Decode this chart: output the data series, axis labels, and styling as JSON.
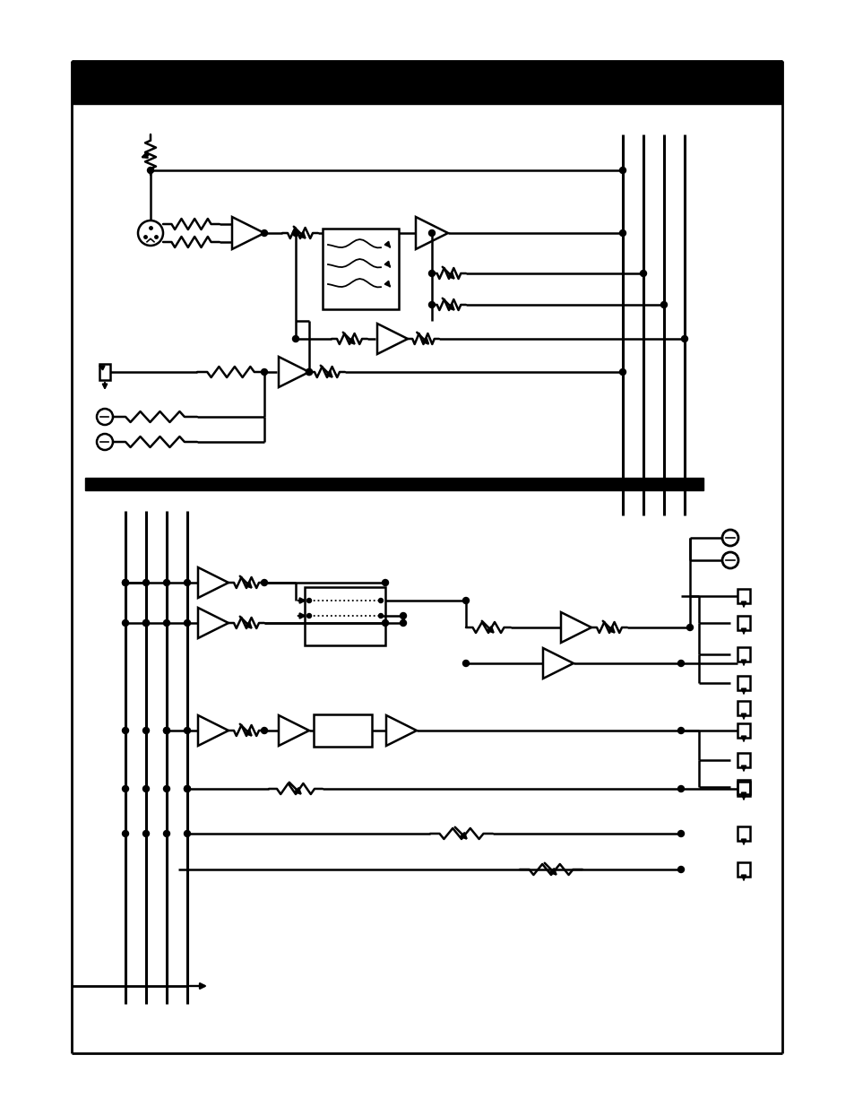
{
  "bg_color": "#ffffff",
  "black": "#000000",
  "fig_width": 9.54,
  "fig_height": 12.35,
  "dpi": 100
}
